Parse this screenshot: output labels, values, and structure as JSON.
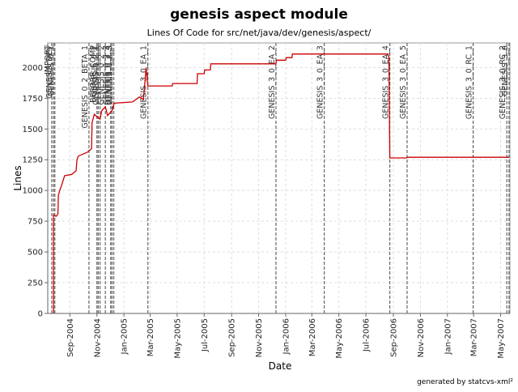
{
  "chart_data": {
    "type": "line",
    "title": "genesis aspect module",
    "subtitle": "Lines Of Code for src/net/java/dev/genesis/aspect/",
    "xlabel": "Date",
    "ylabel": "Lines",
    "footer": "generated by statcvs-xml²",
    "grid": true,
    "series_color": "#cc0000",
    "ylim": [
      0,
      2200
    ],
    "y_ticks": [
      0,
      250,
      500,
      750,
      1000,
      1250,
      1500,
      1750,
      2000
    ],
    "xlim": [
      "2004-07-13",
      "2007-05-22"
    ],
    "x_ticks": [
      {
        "label": "Sep-2004",
        "date": "2004-09-01"
      },
      {
        "label": "Nov-2004",
        "date": "2004-11-01"
      },
      {
        "label": "Jan-2005",
        "date": "2005-01-01"
      },
      {
        "label": "Mar-2005",
        "date": "2005-03-01"
      },
      {
        "label": "May-2005",
        "date": "2005-05-01"
      },
      {
        "label": "Jul-2005",
        "date": "2005-07-01"
      },
      {
        "label": "Sep-2005",
        "date": "2005-09-01"
      },
      {
        "label": "Nov-2005",
        "date": "2005-11-01"
      },
      {
        "label": "Jan-2006",
        "date": "2006-01-01"
      },
      {
        "label": "Mar-2006",
        "date": "2006-03-01"
      },
      {
        "label": "May-2006",
        "date": "2006-05-01"
      },
      {
        "label": "Jul-2006",
        "date": "2006-07-01"
      },
      {
        "label": "Sep-2006",
        "date": "2006-09-01"
      },
      {
        "label": "Nov-2006",
        "date": "2006-11-01"
      },
      {
        "label": "Jan-2007",
        "date": "2007-01-01"
      },
      {
        "label": "Mar-2007",
        "date": "2007-03-01"
      },
      {
        "label": "May-2007",
        "date": "2007-05-01"
      }
    ],
    "points": [
      {
        "x": "2004-07-26",
        "y": 0
      },
      {
        "x": "2004-07-26",
        "y": 800
      },
      {
        "x": "2004-08-01",
        "y": 790
      },
      {
        "x": "2004-08-05",
        "y": 810
      },
      {
        "x": "2004-08-06",
        "y": 960
      },
      {
        "x": "2004-08-09",
        "y": 1000
      },
      {
        "x": "2004-08-14",
        "y": 1050
      },
      {
        "x": "2004-08-20",
        "y": 1120
      },
      {
        "x": "2004-09-05",
        "y": 1130
      },
      {
        "x": "2004-09-15",
        "y": 1160
      },
      {
        "x": "2004-09-17",
        "y": 1250
      },
      {
        "x": "2004-09-20",
        "y": 1280
      },
      {
        "x": "2004-10-10",
        "y": 1310
      },
      {
        "x": "2004-10-20",
        "y": 1340
      },
      {
        "x": "2004-10-21",
        "y": 1550
      },
      {
        "x": "2004-10-26",
        "y": 1620
      },
      {
        "x": "2004-11-01",
        "y": 1600
      },
      {
        "x": "2004-11-08",
        "y": 1580
      },
      {
        "x": "2004-11-12",
        "y": 1650
      },
      {
        "x": "2004-11-20",
        "y": 1680
      },
      {
        "x": "2004-11-25",
        "y": 1610
      },
      {
        "x": "2004-12-05",
        "y": 1650
      },
      {
        "x": "2004-12-10",
        "y": 1710
      },
      {
        "x": "2005-01-20",
        "y": 1720
      },
      {
        "x": "2005-02-05",
        "y": 1760
      },
      {
        "x": "2005-02-14",
        "y": 1740
      },
      {
        "x": "2005-02-20",
        "y": 2000
      },
      {
        "x": "2005-02-24",
        "y": 1850
      },
      {
        "x": "2005-04-20",
        "y": 1850
      },
      {
        "x": "2005-04-21",
        "y": 1870
      },
      {
        "x": "2005-06-15",
        "y": 1870
      },
      {
        "x": "2005-06-16",
        "y": 1950
      },
      {
        "x": "2005-07-01",
        "y": 1950
      },
      {
        "x": "2005-07-02",
        "y": 1980
      },
      {
        "x": "2005-07-15",
        "y": 1980
      },
      {
        "x": "2005-07-16",
        "y": 2030
      },
      {
        "x": "2005-12-10",
        "y": 2030
      },
      {
        "x": "2005-12-11",
        "y": 2060
      },
      {
        "x": "2006-01-01",
        "y": 2060
      },
      {
        "x": "2006-01-02",
        "y": 2080
      },
      {
        "x": "2006-01-15",
        "y": 2080
      },
      {
        "x": "2006-01-16",
        "y": 2110
      },
      {
        "x": "2006-08-20",
        "y": 2110
      },
      {
        "x": "2006-08-22",
        "y": 2080
      },
      {
        "x": "2006-08-24",
        "y": 1265
      },
      {
        "x": "2006-10-01",
        "y": 1265
      },
      {
        "x": "2006-10-02",
        "y": 1270
      },
      {
        "x": "2007-05-20",
        "y": 1270
      }
    ],
    "tags": [
      {
        "label": "IMPORT",
        "date": "2004-07-22"
      },
      {
        "label": "GENESIS_DEV",
        "date": "2004-07-26"
      },
      {
        "label": "GENESIS_0_1",
        "date": "2004-07-29"
      },
      {
        "label": "GENESIS_0_2_BETA_1",
        "date": "2004-10-14"
      },
      {
        "label": "BEFORE_COMP",
        "date": "2004-11-01"
      },
      {
        "label": "GENESIS_0_2",
        "date": "2004-11-04"
      },
      {
        "label": "GENESIS_0_2_1",
        "date": "2004-11-08"
      },
      {
        "label": "GENESIS_0_2_2",
        "date": "2004-11-20"
      },
      {
        "label": "GENESIS_0_2_3",
        "date": "2004-12-02"
      },
      {
        "label": "GENESIS_0_2_4",
        "date": "2004-12-05"
      },
      {
        "label": "GENESIS_0_2_5",
        "date": "2004-12-09"
      },
      {
        "label": "GENESIS_3_0_EA_1",
        "date": "2005-02-24"
      },
      {
        "label": "GENESIS_3_0_EA_2",
        "date": "2005-12-10"
      },
      {
        "label": "GENESIS_3_0_EA_3",
        "date": "2006-03-29"
      },
      {
        "label": "GENESIS_3_0_EA_4",
        "date": "2006-08-24"
      },
      {
        "label": "GENESIS_3_0_EA_5",
        "date": "2006-10-02"
      },
      {
        "label": "GENESIS_3_0_RC_1",
        "date": "2007-02-28"
      },
      {
        "label": "GENESIS_3_0_RC_2",
        "date": "2007-05-15"
      },
      {
        "label": "GENESIS_3_0",
        "date": "2007-05-20"
      }
    ]
  }
}
